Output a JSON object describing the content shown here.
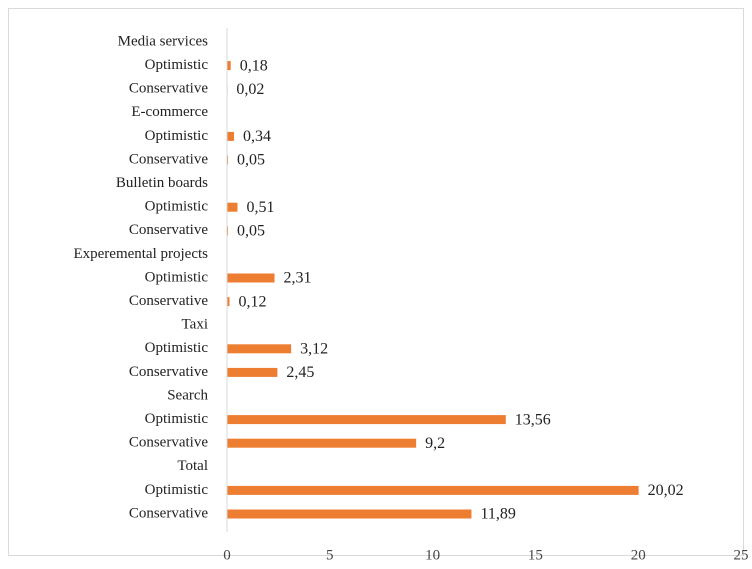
{
  "chart_data": {
    "type": "bar",
    "orientation": "horizontal",
    "title": "",
    "xlabel": "",
    "ylabel": "",
    "xlim": [
      0,
      25
    ],
    "xticks": [
      "0",
      "5",
      "10",
      "15",
      "20",
      "25"
    ],
    "grid": false,
    "legend": "none",
    "bar_color": "#ED7D31",
    "groups": [
      {
        "name": "Media services",
        "bars": [
          {
            "label": "Optimistic",
            "value": 0.18,
            "display": "0,18"
          },
          {
            "label": "Conservative",
            "value": 0.02,
            "display": "0,02"
          }
        ]
      },
      {
        "name": "E-commerce",
        "bars": [
          {
            "label": "Optimistic",
            "value": 0.34,
            "display": "0,34"
          },
          {
            "label": "Conservative",
            "value": 0.05,
            "display": "0,05"
          }
        ]
      },
      {
        "name": "Bulletin boards",
        "bars": [
          {
            "label": "Optimistic",
            "value": 0.51,
            "display": "0,51"
          },
          {
            "label": "Conservative",
            "value": 0.05,
            "display": "0,05"
          }
        ]
      },
      {
        "name": "Experemental projects",
        "bars": [
          {
            "label": "Optimistic",
            "value": 2.31,
            "display": "2,31"
          },
          {
            "label": "Conservative",
            "value": 0.12,
            "display": "0,12"
          }
        ]
      },
      {
        "name": "Taxi",
        "bars": [
          {
            "label": "Optimistic",
            "value": 3.12,
            "display": "3,12"
          },
          {
            "label": "Conservative",
            "value": 2.45,
            "display": "2,45"
          }
        ]
      },
      {
        "name": "Search",
        "bars": [
          {
            "label": "Optimistic",
            "value": 13.56,
            "display": "13,56"
          },
          {
            "label": "Conservative",
            "value": 9.2,
            "display": "9,2"
          }
        ]
      },
      {
        "name": "Total",
        "bars": [
          {
            "label": "Optimistic",
            "value": 20.02,
            "display": "20,02"
          },
          {
            "label": "Conservative",
            "value": 11.89,
            "display": "11,89"
          }
        ]
      }
    ]
  }
}
